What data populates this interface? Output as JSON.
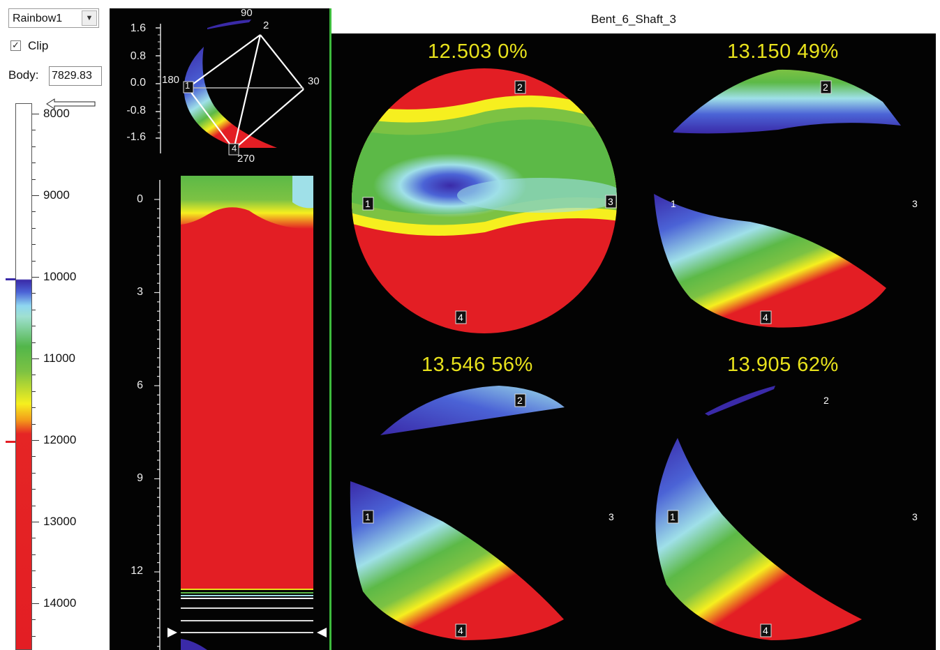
{
  "controls": {
    "palette": "Rainbow1",
    "clip_label": "Clip",
    "clip_checked": "☑",
    "body_label": "Body:",
    "body_value": "7829.83"
  },
  "colorbar": {
    "labels": [
      "8000",
      "9000",
      "10000",
      "11000",
      "12000",
      "13000",
      "14000"
    ]
  },
  "header": {
    "title": "Bent_6_Shaft_3"
  },
  "polar_plot": {
    "y_ticks": [
      "1.6",
      "0.8",
      "0.0",
      "-0.8",
      "-1.6"
    ],
    "angles": [
      "90",
      "180",
      "30",
      "270"
    ],
    "nodes": [
      "1",
      "2",
      "3",
      "4"
    ]
  },
  "longitudinal_plot": {
    "y_ticks": [
      "0",
      "3",
      "6",
      "9",
      "12"
    ]
  },
  "slices": [
    {
      "label": "12.503  0%"
    },
    {
      "label": "13.150  49%"
    },
    {
      "label": "13.546  56%"
    },
    {
      "label": "13.905  62%"
    }
  ],
  "colors": {
    "red": "#e31e24",
    "yellow": "#f6ef1f",
    "green": "#5cb947",
    "cyan": "#9fe0e8",
    "blue": "#3a2aa8",
    "label_yellow": "#e8e21c",
    "divider_green": "#3dbb3d"
  }
}
